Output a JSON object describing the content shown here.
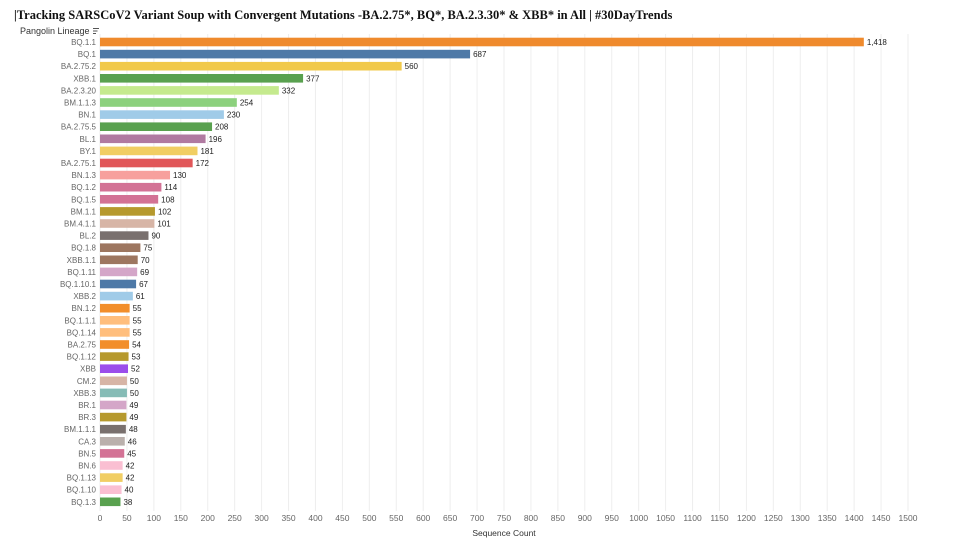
{
  "title": "|Tracking SARSCoV2 Variant Soup with Convergent Mutations -BA.2.75*, BQ*, BA.2.3.30* & XBB* in All | #30DayTrends",
  "row_header": "Pangolin Lineage",
  "chart_data": {
    "type": "bar",
    "orientation": "horizontal",
    "xlabel": "Sequence Count",
    "xlim": [
      0,
      1500
    ],
    "xticks": [
      0,
      50,
      100,
      150,
      200,
      250,
      300,
      350,
      400,
      450,
      500,
      550,
      600,
      650,
      700,
      750,
      800,
      850,
      900,
      950,
      1000,
      1050,
      1100,
      1150,
      1200,
      1250,
      1300,
      1350,
      1400,
      1450,
      1500
    ],
    "grid": true,
    "categories": [
      "BQ.1.1",
      "BQ.1",
      "BA.2.75.2",
      "XBB.1",
      "BA.2.3.20",
      "BM.1.1.3",
      "BN.1",
      "BA.2.75.5",
      "BL.1",
      "BY.1",
      "BA.2.75.1",
      "BN.1.3",
      "BQ.1.2",
      "BQ.1.5",
      "BM.1.1",
      "BM.4.1.1",
      "BL.2",
      "BQ.1.8",
      "XBB.1.1",
      "BQ.1.11",
      "BQ.1.10.1",
      "XBB.2",
      "BN.1.2",
      "BQ.1.1.1",
      "BQ.1.14",
      "BA.2.75",
      "BQ.1.12",
      "XBB",
      "CM.2",
      "XBB.3",
      "BR.1",
      "BR.3",
      "BM.1.1.1",
      "CA.3",
      "BN.5",
      "BN.6",
      "BQ.1.13",
      "BQ.1.10",
      "BQ.1.3"
    ],
    "values": [
      1418,
      687,
      560,
      377,
      332,
      254,
      230,
      208,
      196,
      181,
      172,
      130,
      114,
      108,
      102,
      101,
      90,
      75,
      70,
      69,
      67,
      61,
      55,
      55,
      55,
      54,
      53,
      52,
      50,
      50,
      49,
      49,
      48,
      46,
      45,
      42,
      42,
      40,
      38
    ],
    "value_labels": [
      "1,418",
      "687",
      "560",
      "377",
      "332",
      "254",
      "230",
      "208",
      "196",
      "181",
      "172",
      "130",
      "114",
      "108",
      "102",
      "101",
      "90",
      "75",
      "70",
      "69",
      "67",
      "61",
      "55",
      "55",
      "55",
      "54",
      "53",
      "52",
      "50",
      "50",
      "49",
      "49",
      "48",
      "46",
      "45",
      "42",
      "42",
      "40",
      "38"
    ],
    "colors": [
      "#EF8A2D",
      "#4E79A7",
      "#F1C94A",
      "#59A14F",
      "#C5EA8E",
      "#8CD17D",
      "#A0CBE8",
      "#59A14F",
      "#B07AA1",
      "#F1CE63",
      "#E15759",
      "#F7A09D",
      "#D37295",
      "#D37295",
      "#B6992D",
      "#D7B5A6",
      "#79706E",
      "#9D7660",
      "#9D7660",
      "#D4A6C8",
      "#4E79A7",
      "#A0CBE8",
      "#F28E2B",
      "#FFBE7D",
      "#FFBE7D",
      "#F28E2B",
      "#B6992D",
      "#9B4DEB",
      "#D7B5A6",
      "#86BCB6",
      "#D4A6C8",
      "#B6992D",
      "#79706E",
      "#BAB0AC",
      "#D37295",
      "#FABFD2",
      "#F1CE63",
      "#FABFD2",
      "#59A14F"
    ]
  }
}
